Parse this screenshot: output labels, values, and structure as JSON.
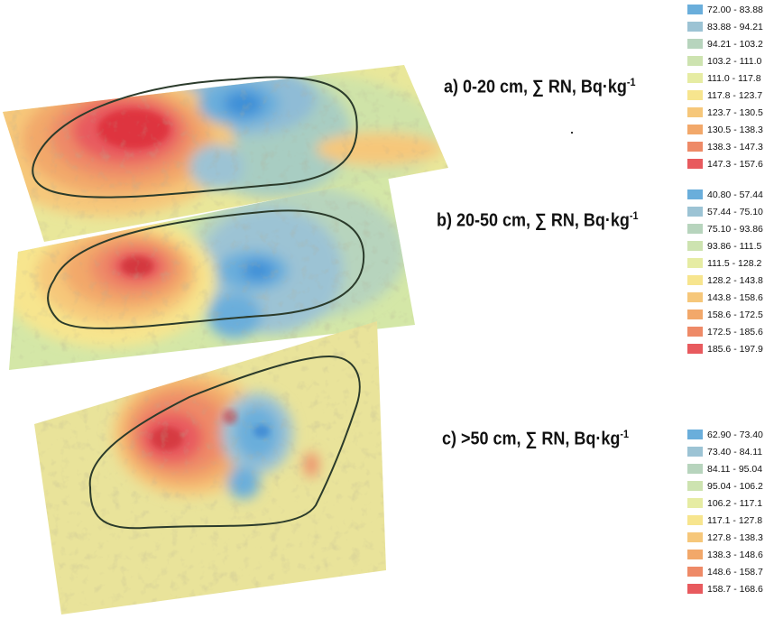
{
  "layers": [
    {
      "id": "a",
      "title_main": "a) 0-20 cm, ∑ RN, Bq·kg",
      "title_sup": "-1",
      "legend": [
        {
          "range": "72.00 - 83.88",
          "color": "#6aaedb"
        },
        {
          "range": "83.88 - 94.21",
          "color": "#9cc3d4"
        },
        {
          "range": "94.21 - 103.2",
          "color": "#b7d4bd"
        },
        {
          "range": "103.2 - 111.0",
          "color": "#cde3b0"
        },
        {
          "range": "111.0 - 117.8",
          "color": "#e6eca3"
        },
        {
          "range": "117.8 - 123.7",
          "color": "#f7e58e"
        },
        {
          "range": "123.7 - 130.5",
          "color": "#f6c77a"
        },
        {
          "range": "130.5 - 138.3",
          "color": "#f2a86a"
        },
        {
          "range": "138.3 - 147.3",
          "color": "#ee8a67"
        },
        {
          "range": "147.3 - 157.6",
          "color": "#e85a5e"
        }
      ]
    },
    {
      "id": "b",
      "title_main": "b) 20-50 cm, ∑ RN, Bq·kg",
      "title_sup": "-1",
      "legend": [
        {
          "range": "40.80 - 57.44",
          "color": "#6aaedb"
        },
        {
          "range": "57.44 - 75.10",
          "color": "#9cc3d4"
        },
        {
          "range": "75.10 - 93.86",
          "color": "#b7d4bd"
        },
        {
          "range": "93.86 - 111.5",
          "color": "#cde3b0"
        },
        {
          "range": "111.5 - 128.2",
          "color": "#e6eca3"
        },
        {
          "range": "128.2 - 143.8",
          "color": "#f7e58e"
        },
        {
          "range": "143.8 - 158.6",
          "color": "#f6c77a"
        },
        {
          "range": "158.6 - 172.5",
          "color": "#f2a86a"
        },
        {
          "range": "172.5 - 185.6",
          "color": "#ee8a67"
        },
        {
          "range": "185.6 - 197.9",
          "color": "#e85a5e"
        }
      ]
    },
    {
      "id": "c",
      "title_main": "c) >50 cm, ∑ RN, Bq·kg",
      "title_sup": "-1",
      "legend": [
        {
          "range": "62.90 - 73.40",
          "color": "#6aaedb"
        },
        {
          "range": "73.40 - 84.11",
          "color": "#9cc3d4"
        },
        {
          "range": "84.11 - 95.04",
          "color": "#b7d4bd"
        },
        {
          "range": "95.04 - 106.2",
          "color": "#cde3b0"
        },
        {
          "range": "106.2 - 117.1",
          "color": "#e6eca3"
        },
        {
          "range": "117.1 - 127.8",
          "color": "#f7e58e"
        },
        {
          "range": "127.8 - 138.3",
          "color": "#f6c77a"
        },
        {
          "range": "138.3 - 148.6",
          "color": "#f2a86a"
        },
        {
          "range": "148.6 - 158.7",
          "color": "#ee8a67"
        },
        {
          "range": "158.7 - 168.6",
          "color": "#e85a5e"
        }
      ]
    }
  ]
}
